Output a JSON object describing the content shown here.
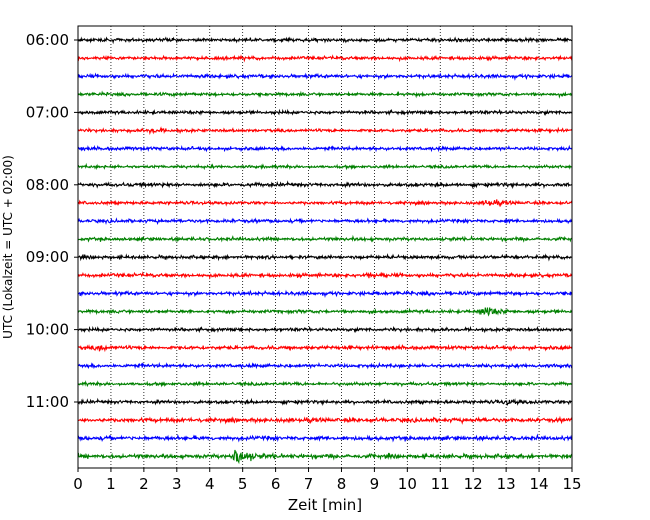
{
  "chart_data": {
    "type": "line",
    "subtype": "helicorder",
    "xlabel": "Zeit  [min]",
    "ylabel": "UTC (Lokalzeit = UTC + 02:00)",
    "xlim": [
      0,
      15
    ],
    "x_ticks": [
      "0",
      "1",
      "2",
      "3",
      "4",
      "5",
      "6",
      "7",
      "8",
      "9",
      "10",
      "11",
      "12",
      "13",
      "14",
      "15"
    ],
    "y_ticks": [
      "06:00",
      "07:00",
      "08:00",
      "09:00",
      "10:00",
      "11:00"
    ],
    "grid": "vertical-dotted",
    "row_minutes": 15,
    "rows": [
      {
        "start": "06:00",
        "color": "#000000",
        "amplitude": 0.28,
        "events": []
      },
      {
        "start": "06:15",
        "color": "#ff0000",
        "amplitude": 0.28,
        "events": []
      },
      {
        "start": "06:30",
        "color": "#0000ff",
        "amplitude": 0.3,
        "events": []
      },
      {
        "start": "06:45",
        "color": "#008000",
        "amplitude": 0.26,
        "events": []
      },
      {
        "start": "07:00",
        "color": "#000000",
        "amplitude": 0.28,
        "events": []
      },
      {
        "start": "07:15",
        "color": "#ff0000",
        "amplitude": 0.26,
        "events": [
          {
            "t": 2.2,
            "amp": 0.35
          }
        ]
      },
      {
        "start": "07:30",
        "color": "#0000ff",
        "amplitude": 0.28,
        "events": []
      },
      {
        "start": "07:45",
        "color": "#008000",
        "amplitude": 0.24,
        "events": []
      },
      {
        "start": "08:00",
        "color": "#000000",
        "amplitude": 0.3,
        "events": []
      },
      {
        "start": "08:15",
        "color": "#ff0000",
        "amplitude": 0.26,
        "events": [
          {
            "t": 12.4,
            "amp": 0.55
          }
        ]
      },
      {
        "start": "08:30",
        "color": "#0000ff",
        "amplitude": 0.28,
        "events": []
      },
      {
        "start": "08:45",
        "color": "#008000",
        "amplitude": 0.28,
        "events": []
      },
      {
        "start": "09:00",
        "color": "#000000",
        "amplitude": 0.28,
        "events": []
      },
      {
        "start": "09:15",
        "color": "#ff0000",
        "amplitude": 0.3,
        "events": [
          {
            "t": 8.8,
            "amp": 0.35
          }
        ]
      },
      {
        "start": "09:30",
        "color": "#0000ff",
        "amplitude": 0.3,
        "events": []
      },
      {
        "start": "09:45",
        "color": "#008000",
        "amplitude": 0.28,
        "events": [
          {
            "t": 12.3,
            "amp": 1.15
          }
        ]
      },
      {
        "start": "10:00",
        "color": "#000000",
        "amplitude": 0.28,
        "events": []
      },
      {
        "start": "10:15",
        "color": "#ff0000",
        "amplitude": 0.3,
        "events": [
          {
            "t": 0.6,
            "amp": 0.45
          }
        ]
      },
      {
        "start": "10:30",
        "color": "#0000ff",
        "amplitude": 0.3,
        "events": []
      },
      {
        "start": "10:45",
        "color": "#008000",
        "amplitude": 0.26,
        "events": []
      },
      {
        "start": "11:00",
        "color": "#000000",
        "amplitude": 0.28,
        "events": [
          {
            "t": 13.0,
            "amp": 0.35
          }
        ]
      },
      {
        "start": "11:15",
        "color": "#ff0000",
        "amplitude": 0.34,
        "events": []
      },
      {
        "start": "11:30",
        "color": "#0000ff",
        "amplitude": 0.34,
        "events": []
      },
      {
        "start": "11:45",
        "color": "#008000",
        "amplitude": 0.34,
        "events": [
          {
            "t": 4.8,
            "amp": 1.6
          }
        ]
      }
    ]
  }
}
